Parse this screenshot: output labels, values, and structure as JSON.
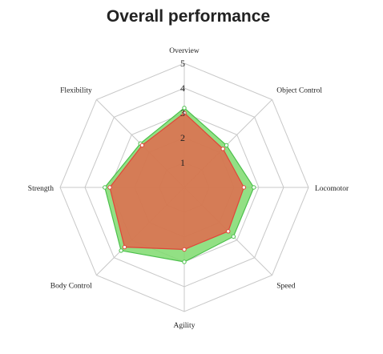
{
  "chart_data": {
    "type": "radar",
    "title": "Overall performance",
    "axes": [
      "Overview",
      "Object Control",
      "Locomotor",
      "Speed",
      "Agility",
      "Body Control",
      "Strength",
      "Flexibility"
    ],
    "rlim": [
      0,
      5
    ],
    "ticks": [
      "1",
      "2",
      "3",
      "4",
      "5"
    ],
    "grid": true,
    "series": [
      {
        "values": [
          3.2,
          2.4,
          2.8,
          2.8,
          3.0,
          3.6,
          3.2,
          2.5
        ],
        "color": "#7fdb6f",
        "stroke": "#4cc04c"
      },
      {
        "values": [
          3.0,
          2.2,
          2.4,
          2.5,
          2.5,
          3.4,
          3.0,
          2.4
        ],
        "color": "#e06a4e",
        "stroke": "#e0463a"
      }
    ]
  }
}
